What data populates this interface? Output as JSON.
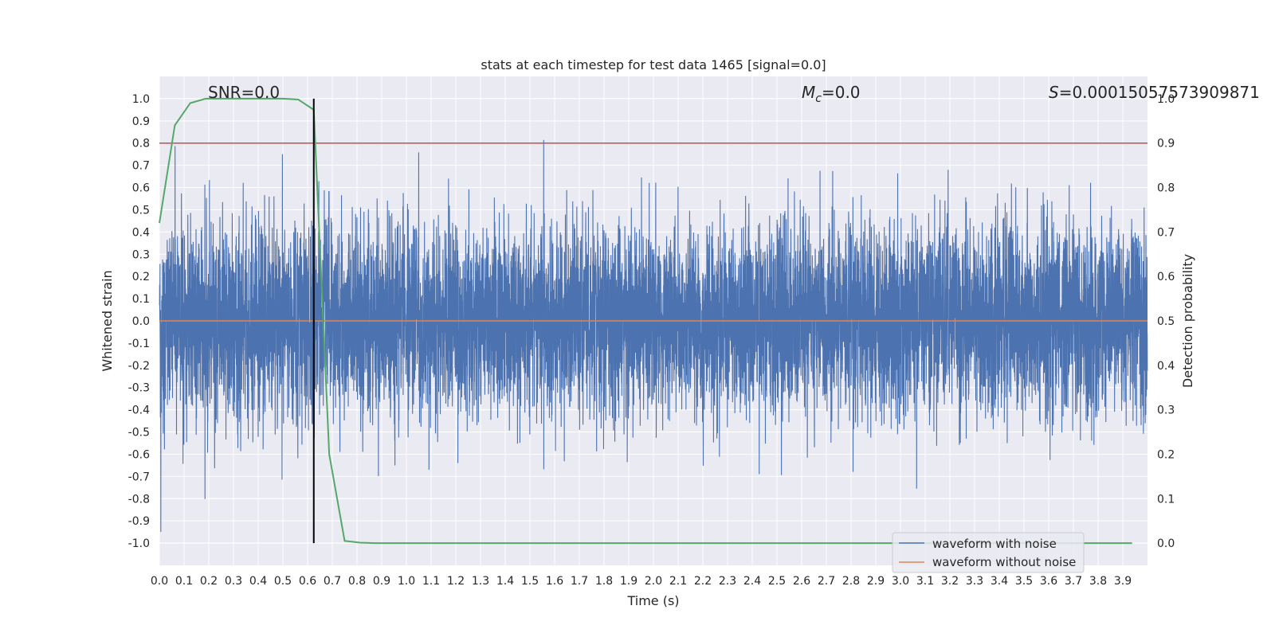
{
  "chart_data": {
    "type": "line",
    "title": "stats at each timestep for test data 1465 [signal=0.0]",
    "xlabel": "Time (s)",
    "ylabel": "Whitened strain",
    "ylabel_right": "Detection probability",
    "xlim": [
      0.0,
      4.0
    ],
    "ylim": [
      -1.1,
      1.1
    ],
    "ylim_right": [
      -0.05,
      1.05
    ],
    "x_ticks": [
      "0.0",
      "0.1",
      "0.2",
      "0.3",
      "0.4",
      "0.5",
      "0.6",
      "0.7",
      "0.8",
      "0.9",
      "1.0",
      "1.1",
      "1.2",
      "1.3",
      "1.4",
      "1.5",
      "1.6",
      "1.7",
      "1.8",
      "1.9",
      "2.0",
      "2.1",
      "2.2",
      "2.3",
      "2.4",
      "2.5",
      "2.6",
      "2.7",
      "2.8",
      "2.9",
      "3.0",
      "3.1",
      "3.2",
      "3.3",
      "3.4",
      "3.5",
      "3.6",
      "3.7",
      "3.8",
      "3.9"
    ],
    "y_ticks": [
      "1.0",
      "0.9",
      "0.8",
      "0.7",
      "0.6",
      "0.5",
      "0.4",
      "0.3",
      "0.2",
      "0.1",
      "0.0",
      "-0.1",
      "-0.2",
      "-0.3",
      "-0.4",
      "-0.5",
      "-0.6",
      "-0.7",
      "-0.8",
      "-0.9",
      "-1.0"
    ],
    "y_ticks_right": [
      "1.0",
      "0.9",
      "0.8",
      "0.7",
      "0.6",
      "0.5",
      "0.4",
      "0.3",
      "0.2",
      "0.1",
      "0.0"
    ],
    "annotations": {
      "snr": "SNR=0.0",
      "mc_symbol": "M",
      "mc_sub": "c",
      "mc_value": "=0.0",
      "s_symbol": "S",
      "s_value": "=0.00015057573909871"
    },
    "threshold_right": 0.9,
    "marker_time": 0.625,
    "series": [
      {
        "name": "waveform with noise",
        "color": "#4c72b0",
        "description": "whitened noisy strain sampled at 2048 Hz over 0-4 s, values between about -1.0 and 1.0"
      },
      {
        "name": "waveform without noise",
        "color": "#dd8452",
        "values_constant": 0.0
      },
      {
        "name": "detection probability",
        "color": "#55a868",
        "axis": "right",
        "x": [
          0.0,
          0.0625,
          0.125,
          0.1875,
          0.25,
          0.3125,
          0.375,
          0.4375,
          0.5,
          0.5625,
          0.625,
          0.6875,
          0.75,
          0.8125,
          0.875,
          0.9375,
          1.0,
          1.5,
          2.0,
          2.5,
          3.0,
          3.5,
          3.9375
        ],
        "values": [
          0.72,
          0.94,
          0.99,
          1.0,
          1.0,
          1.0,
          1.0,
          1.0,
          1.0,
          0.998,
          0.975,
          0.2,
          0.005,
          0.001,
          0.0,
          0.0,
          0.0,
          0.0,
          0.0,
          0.0,
          0.0,
          0.0,
          0.0
        ]
      }
    ],
    "legend": {
      "position": "lower-right",
      "entries": [
        "waveform with noise",
        "waveform without noise"
      ]
    },
    "colors": {
      "axes_bg": "#eaeaf2",
      "grid": "#ffffff",
      "threshold": "#c44e52",
      "marker": "#000000"
    }
  }
}
